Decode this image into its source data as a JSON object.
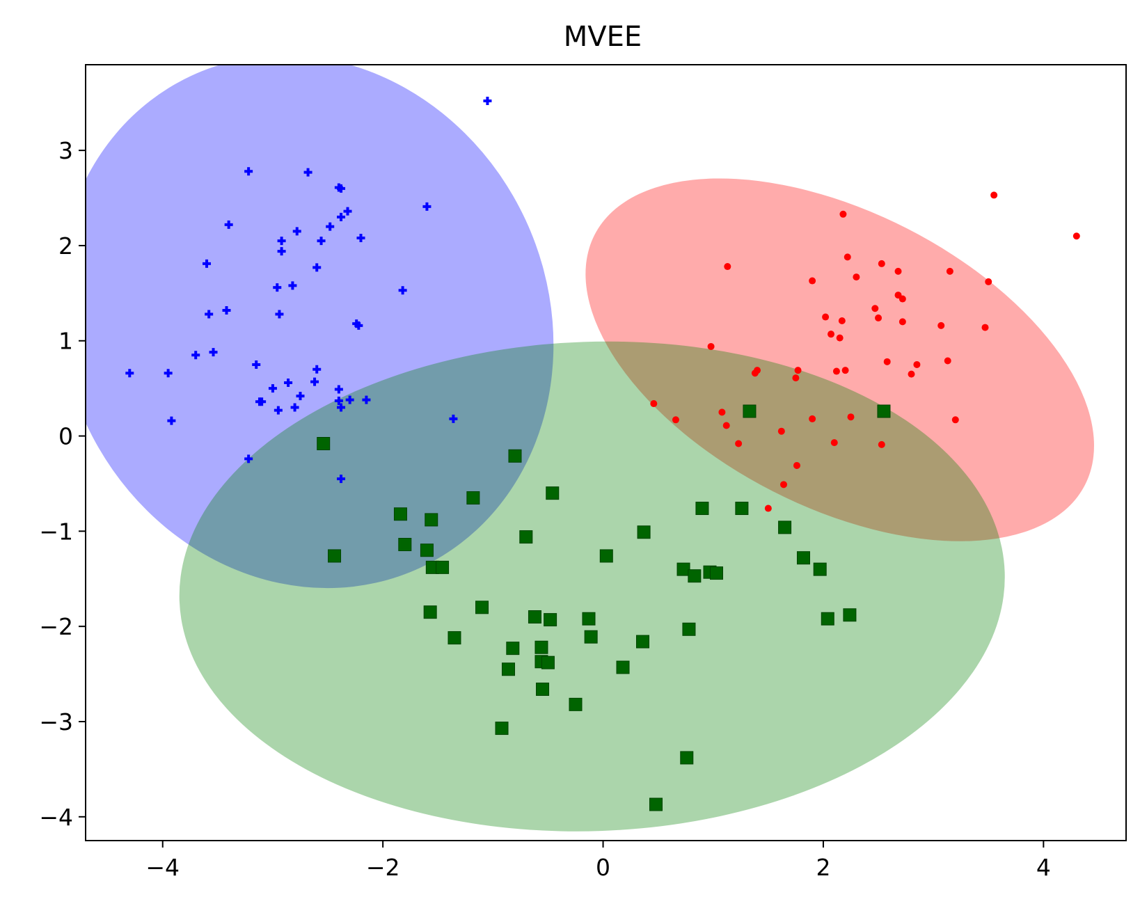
{
  "chart_data": {
    "type": "scatter",
    "title": "MVEE",
    "xlabel": "",
    "ylabel": "",
    "xlim": [
      -4.7,
      4.75
    ],
    "ylim": [
      -4.25,
      3.9
    ],
    "x_ticks": [
      -4,
      -2,
      0,
      2,
      4
    ],
    "y_ticks": [
      -4,
      -3,
      -2,
      -1,
      0,
      1,
      2,
      3
    ],
    "x_tick_labels": [
      "−4",
      "−2",
      "0",
      "2",
      "4"
    ],
    "y_tick_labels": [
      "−4",
      "−3",
      "−2",
      "−1",
      "0",
      "1",
      "2",
      "3"
    ],
    "grid": false,
    "ellipses": [
      {
        "color": "#0000ff",
        "opacity": 0.33,
        "center": [
          -2.7,
          1.2
        ],
        "axes": [
          2.2,
          2.85
        ],
        "angle_deg": -25
      },
      {
        "color": "#ff0000",
        "opacity": 0.33,
        "center": [
          2.15,
          0.8
        ],
        "axes": [
          2.5,
          1.55
        ],
        "angle_deg": 27
      },
      {
        "color": "#008000",
        "opacity": 0.33,
        "center": [
          -0.1,
          -1.58
        ],
        "axes": [
          3.75,
          2.57
        ],
        "angle_deg": -2
      }
    ],
    "series": [
      {
        "color": "#0000ff",
        "marker": "plus",
        "points": [
          [
            -1.05,
            3.52
          ],
          [
            -3.22,
            2.78
          ],
          [
            -2.68,
            2.77
          ],
          [
            -2.4,
            2.61
          ],
          [
            -2.38,
            2.6
          ],
          [
            -1.6,
            2.41
          ],
          [
            -2.32,
            2.36
          ],
          [
            -2.38,
            2.3
          ],
          [
            -3.4,
            2.22
          ],
          [
            -2.48,
            2.2
          ],
          [
            -2.78,
            2.15
          ],
          [
            -2.2,
            2.08
          ],
          [
            -2.92,
            2.05
          ],
          [
            -2.56,
            2.05
          ],
          [
            -2.92,
            1.94
          ],
          [
            -3.6,
            1.81
          ],
          [
            -2.6,
            1.77
          ],
          [
            -2.82,
            1.58
          ],
          [
            -2.96,
            1.56
          ],
          [
            -1.82,
            1.53
          ],
          [
            -3.42,
            1.32
          ],
          [
            -3.58,
            1.28
          ],
          [
            -2.94,
            1.28
          ],
          [
            -2.24,
            1.18
          ],
          [
            -2.22,
            1.16
          ],
          [
            -3.54,
            0.88
          ],
          [
            -3.7,
            0.85
          ],
          [
            -3.15,
            0.75
          ],
          [
            -2.6,
            0.7
          ],
          [
            -4.3,
            0.66
          ],
          [
            -3.95,
            0.66
          ],
          [
            -2.86,
            0.56
          ],
          [
            -2.62,
            0.57
          ],
          [
            -3.0,
            0.5
          ],
          [
            -2.4,
            0.49
          ],
          [
            -2.75,
            0.42
          ],
          [
            -3.12,
            0.36
          ],
          [
            -3.1,
            0.36
          ],
          [
            -2.4,
            0.37
          ],
          [
            -2.3,
            0.38
          ],
          [
            -2.15,
            0.38
          ],
          [
            -2.95,
            0.27
          ],
          [
            -2.8,
            0.3
          ],
          [
            -2.38,
            0.3
          ],
          [
            -3.92,
            0.16
          ],
          [
            -1.36,
            0.18
          ],
          [
            -3.22,
            -0.24
          ],
          [
            -2.38,
            -0.45
          ]
        ]
      },
      {
        "color": "#ff0000",
        "marker": "dot",
        "points": [
          [
            3.55,
            2.53
          ],
          [
            2.18,
            2.33
          ],
          [
            4.3,
            2.1
          ],
          [
            2.22,
            1.88
          ],
          [
            2.53,
            1.81
          ],
          [
            1.13,
            1.78
          ],
          [
            2.68,
            1.73
          ],
          [
            3.15,
            1.73
          ],
          [
            2.3,
            1.67
          ],
          [
            1.9,
            1.63
          ],
          [
            3.5,
            1.62
          ],
          [
            2.68,
            1.48
          ],
          [
            2.72,
            1.44
          ],
          [
            2.47,
            1.34
          ],
          [
            2.02,
            1.25
          ],
          [
            2.5,
            1.24
          ],
          [
            2.17,
            1.21
          ],
          [
            2.72,
            1.2
          ],
          [
            3.07,
            1.16
          ],
          [
            3.47,
            1.14
          ],
          [
            2.07,
            1.07
          ],
          [
            2.15,
            1.03
          ],
          [
            0.98,
            0.94
          ],
          [
            2.58,
            0.78
          ],
          [
            3.13,
            0.79
          ],
          [
            2.85,
            0.75
          ],
          [
            1.4,
            0.69
          ],
          [
            1.77,
            0.69
          ],
          [
            2.12,
            0.68
          ],
          [
            2.2,
            0.69
          ],
          [
            2.8,
            0.65
          ],
          [
            1.38,
            0.66
          ],
          [
            1.75,
            0.61
          ],
          [
            0.46,
            0.34
          ],
          [
            1.08,
            0.25
          ],
          [
            0.66,
            0.17
          ],
          [
            1.9,
            0.18
          ],
          [
            2.25,
            0.2
          ],
          [
            3.2,
            0.17
          ],
          [
            1.12,
            0.11
          ],
          [
            1.62,
            0.05
          ],
          [
            1.23,
            -0.08
          ],
          [
            2.1,
            -0.07
          ],
          [
            2.53,
            -0.09
          ],
          [
            1.76,
            -0.31
          ],
          [
            1.64,
            -0.51
          ],
          [
            1.5,
            -0.76
          ]
        ]
      },
      {
        "color": "#006400",
        "marker": "square",
        "points": [
          [
            -2.54,
            -0.08
          ],
          [
            1.33,
            0.26
          ],
          [
            2.55,
            0.26
          ],
          [
            -0.8,
            -0.21
          ],
          [
            -0.46,
            -0.6
          ],
          [
            -1.18,
            -0.65
          ],
          [
            0.9,
            -0.76
          ],
          [
            1.26,
            -0.76
          ],
          [
            -1.84,
            -0.82
          ],
          [
            -1.56,
            -0.88
          ],
          [
            1.65,
            -0.96
          ],
          [
            0.37,
            -1.01
          ],
          [
            -0.7,
            -1.06
          ],
          [
            -1.8,
            -1.14
          ],
          [
            -1.6,
            -1.2
          ],
          [
            0.03,
            -1.26
          ],
          [
            -2.44,
            -1.26
          ],
          [
            1.82,
            -1.28
          ],
          [
            -1.55,
            -1.38
          ],
          [
            -1.46,
            -1.38
          ],
          [
            0.73,
            -1.4
          ],
          [
            1.97,
            -1.4
          ],
          [
            0.97,
            -1.43
          ],
          [
            1.03,
            -1.44
          ],
          [
            0.83,
            -1.47
          ],
          [
            -1.57,
            -1.85
          ],
          [
            -1.1,
            -1.8
          ],
          [
            -0.62,
            -1.9
          ],
          [
            -0.48,
            -1.93
          ],
          [
            -0.13,
            -1.92
          ],
          [
            2.04,
            -1.92
          ],
          [
            2.24,
            -1.88
          ],
          [
            0.78,
            -2.03
          ],
          [
            -1.35,
            -2.12
          ],
          [
            -0.11,
            -2.11
          ],
          [
            0.36,
            -2.16
          ],
          [
            -0.82,
            -2.23
          ],
          [
            -0.56,
            -2.22
          ],
          [
            -0.56,
            -2.37
          ],
          [
            -0.5,
            -2.38
          ],
          [
            0.18,
            -2.43
          ],
          [
            -0.86,
            -2.45
          ],
          [
            -0.55,
            -2.66
          ],
          [
            -0.25,
            -2.82
          ],
          [
            -0.92,
            -3.07
          ],
          [
            0.76,
            -3.38
          ],
          [
            0.48,
            -3.87
          ]
        ]
      }
    ]
  }
}
